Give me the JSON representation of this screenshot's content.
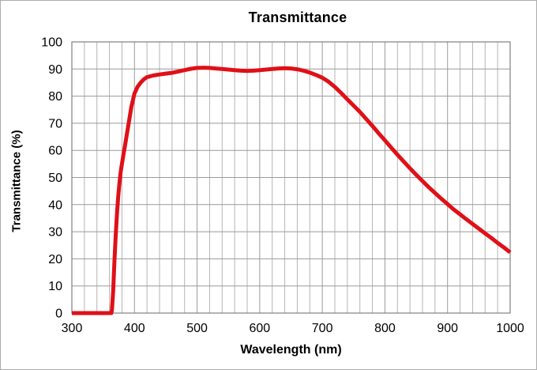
{
  "window": {
    "background": "#ffffff",
    "border_color": "#adadad"
  },
  "chart_data": {
    "type": "line",
    "title": "Transmittance",
    "xlabel": "Wavelength (nm)",
    "ylabel": "Transmittance (%)",
    "xlim": [
      300,
      1000
    ],
    "ylim": [
      0,
      100
    ],
    "x_major_ticks": [
      300,
      400,
      500,
      600,
      700,
      800,
      900,
      1000
    ],
    "x_minor_step": 20,
    "y_ticks": [
      0,
      10,
      20,
      30,
      40,
      50,
      60,
      70,
      80,
      90,
      100
    ],
    "grid": true,
    "legend_position": "none",
    "frame_color": "#808080",
    "grid_major_color": "#9a9a9a",
    "grid_minor_color": "#b5b5b5",
    "series": [
      {
        "name": "Transmittance",
        "color": "#e01018",
        "points": [
          [
            300,
            0
          ],
          [
            310,
            0
          ],
          [
            320,
            0
          ],
          [
            330,
            0
          ],
          [
            340,
            0
          ],
          [
            350,
            0
          ],
          [
            360,
            0
          ],
          [
            363,
            0
          ],
          [
            364,
            1
          ],
          [
            366,
            8
          ],
          [
            368,
            19
          ],
          [
            370,
            28.5
          ],
          [
            372,
            36.5
          ],
          [
            374,
            43
          ],
          [
            376,
            48
          ],
          [
            378,
            52
          ],
          [
            380,
            55
          ],
          [
            385,
            62
          ],
          [
            390,
            69
          ],
          [
            395,
            76
          ],
          [
            400,
            81
          ],
          [
            405,
            83.5
          ],
          [
            410,
            85
          ],
          [
            415,
            86.2
          ],
          [
            420,
            87
          ],
          [
            430,
            87.6
          ],
          [
            440,
            88
          ],
          [
            450,
            88.3
          ],
          [
            460,
            88.6
          ],
          [
            470,
            89.1
          ],
          [
            480,
            89.6
          ],
          [
            490,
            90.1
          ],
          [
            500,
            90.4
          ],
          [
            510,
            90.5
          ],
          [
            520,
            90.4
          ],
          [
            530,
            90.2
          ],
          [
            540,
            90
          ],
          [
            550,
            89.8
          ],
          [
            560,
            89.6
          ],
          [
            570,
            89.4
          ],
          [
            580,
            89.3
          ],
          [
            590,
            89.4
          ],
          [
            600,
            89.6
          ],
          [
            610,
            89.8
          ],
          [
            620,
            90
          ],
          [
            630,
            90.2
          ],
          [
            640,
            90.3
          ],
          [
            650,
            90.2
          ],
          [
            660,
            89.9
          ],
          [
            670,
            89.4
          ],
          [
            680,
            88.7
          ],
          [
            690,
            87.8
          ],
          [
            700,
            86.8
          ],
          [
            710,
            85.3
          ],
          [
            720,
            83.4
          ],
          [
            730,
            81.2
          ],
          [
            740,
            78.8
          ],
          [
            750,
            76.5
          ],
          [
            760,
            74.2
          ],
          [
            770,
            71.6
          ],
          [
            780,
            69
          ],
          [
            790,
            66.3
          ],
          [
            800,
            63.7
          ],
          [
            810,
            61
          ],
          [
            820,
            58.4
          ],
          [
            830,
            55.9
          ],
          [
            840,
            53.4
          ],
          [
            850,
            51
          ],
          [
            860,
            48.7
          ],
          [
            870,
            46.4
          ],
          [
            880,
            44.3
          ],
          [
            890,
            42.2
          ],
          [
            900,
            40.2
          ],
          [
            910,
            38.2
          ],
          [
            920,
            36.4
          ],
          [
            930,
            34.6
          ],
          [
            940,
            32.9
          ],
          [
            950,
            31.1
          ],
          [
            960,
            29.4
          ],
          [
            970,
            27.7
          ],
          [
            980,
            25.9
          ],
          [
            990,
            24.2
          ],
          [
            1000,
            22.4
          ]
        ]
      }
    ]
  }
}
